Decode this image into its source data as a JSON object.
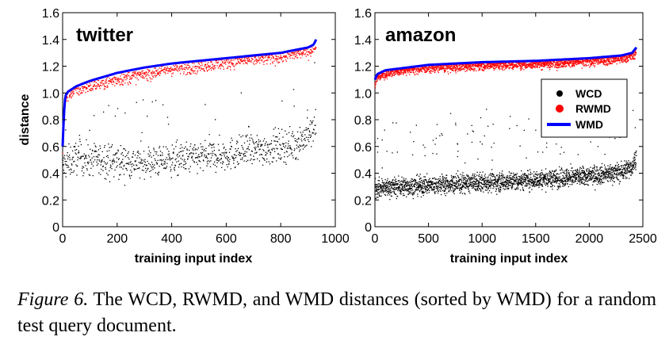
{
  "chart_data": [
    {
      "type": "scatter",
      "title": "twitter",
      "xlabel": "training input index",
      "ylabel": "distance",
      "xlim": [
        0,
        1000
      ],
      "ylim": [
        0,
        1.6
      ],
      "xticks": [
        "0",
        "200",
        "400",
        "600",
        "800",
        "1000"
      ],
      "yticks": [
        "0",
        "0.2",
        "0.4",
        "0.6",
        "0.8",
        "1.0",
        "1.2",
        "1.4",
        "1.6"
      ],
      "n_points": 930,
      "series": [
        {
          "name": "WCD",
          "color": "#000000",
          "marker": "dot",
          "x": [
            0,
            50,
            100,
            200,
            300,
            400,
            500,
            600,
            700,
            800,
            850,
            900,
            930
          ],
          "y": [
            0.45,
            0.52,
            0.5,
            0.49,
            0.48,
            0.5,
            0.52,
            0.54,
            0.57,
            0.6,
            0.62,
            0.68,
            0.75
          ],
          "spread": 0.06
        },
        {
          "name": "RWMD",
          "color": "#ff0000",
          "marker": "dot",
          "x": [
            0,
            5,
            10,
            20,
            50,
            100,
            200,
            300,
            400,
            500,
            600,
            700,
            800,
            850,
            900,
            920,
            930
          ],
          "y": [
            0.58,
            0.8,
            0.95,
            0.99,
            1.02,
            1.05,
            1.1,
            1.14,
            1.18,
            1.2,
            1.23,
            1.25,
            1.27,
            1.29,
            1.31,
            1.33,
            1.37
          ],
          "spread": 0.025
        },
        {
          "name": "WMD",
          "color": "#0000ff",
          "marker": "line",
          "x": [
            0,
            5,
            10,
            20,
            50,
            100,
            200,
            300,
            400,
            500,
            600,
            700,
            800,
            850,
            900,
            920,
            930
          ],
          "y": [
            0.6,
            0.85,
            0.98,
            1.01,
            1.05,
            1.09,
            1.15,
            1.19,
            1.22,
            1.24,
            1.26,
            1.28,
            1.3,
            1.32,
            1.34,
            1.36,
            1.4
          ]
        }
      ]
    },
    {
      "type": "scatter",
      "title": "amazon",
      "xlabel": "training input index",
      "ylabel": "",
      "xlim": [
        0,
        2500
      ],
      "ylim": [
        0,
        1.6
      ],
      "xticks": [
        "0",
        "500",
        "1000",
        "1500",
        "2000",
        "2500"
      ],
      "yticks": [
        "0",
        "0.2",
        "0.4",
        "0.6",
        "0.8",
        "1.0",
        "1.2",
        "1.4",
        "1.6"
      ],
      "n_points": 2440,
      "legend": {
        "position": "right",
        "items": [
          "WCD",
          "RWMD",
          "WMD"
        ]
      },
      "series": [
        {
          "name": "WCD",
          "color": "#000000",
          "marker": "dot",
          "x": [
            0,
            500,
            1000,
            1500,
            2000,
            2300,
            2400,
            2440
          ],
          "y": [
            0.29,
            0.31,
            0.33,
            0.35,
            0.38,
            0.41,
            0.45,
            0.53
          ],
          "spread": 0.035
        },
        {
          "name": "RWMD",
          "color": "#ff0000",
          "marker": "dot",
          "x": [
            0,
            20,
            100,
            300,
            500,
            1000,
            1500,
            2000,
            2300,
            2400,
            2440
          ],
          "y": [
            1.07,
            1.12,
            1.15,
            1.18,
            1.19,
            1.21,
            1.22,
            1.24,
            1.26,
            1.28,
            1.31
          ],
          "spread": 0.02
        },
        {
          "name": "WMD",
          "color": "#0000ff",
          "marker": "line",
          "x": [
            0,
            20,
            100,
            300,
            500,
            1000,
            1500,
            2000,
            2300,
            2400,
            2440
          ],
          "y": [
            1.1,
            1.14,
            1.17,
            1.19,
            1.21,
            1.23,
            1.24,
            1.26,
            1.28,
            1.3,
            1.34
          ]
        }
      ]
    }
  ],
  "caption": {
    "label": "Figure 6.",
    "text": "The WCD, RWMD, and WMD distances (sorted by WMD) for a random test query document."
  }
}
